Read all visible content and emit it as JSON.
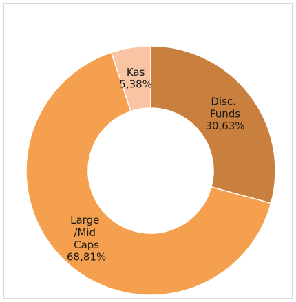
{
  "chart_data": {
    "type": "donut",
    "categories": [
      "Disc. Funds",
      "Large /Mid Caps",
      "Kas"
    ],
    "values": [
      30.63,
      68.81,
      5.38
    ],
    "value_labels": [
      "30,63%",
      "68,81%",
      "5,38%"
    ],
    "colors": [
      "#c97f3d",
      "#f5a04e",
      "#f9c4a4"
    ]
  }
}
